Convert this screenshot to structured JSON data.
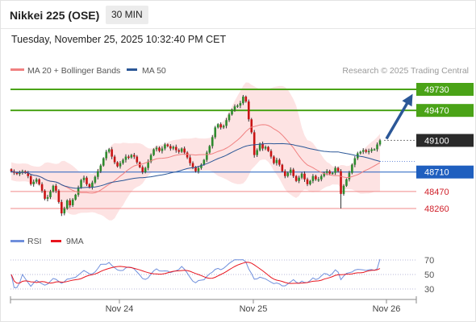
{
  "header": {
    "title": "Nikkei 225 (OSE)",
    "timeframe": "30 MIN",
    "datetime": "Tuesday, November 25, 2025 10:32:40 PM CET"
  },
  "legend": {
    "bb": {
      "label": "MA 20 + Bollinger Bands",
      "color": "#f08080"
    },
    "ma50": {
      "label": "MA 50",
      "color": "#2b5797"
    },
    "copyright": "Research © 2025 Trading Central"
  },
  "colors": {
    "up": "#2e8b2e",
    "down": "#c81414",
    "wick": "#333333",
    "resistance": "#4aa317",
    "support": "#1f5fbf",
    "minor_support": "#f08a8a",
    "current": "#2a2a2a",
    "arrow": "#2b5797",
    "band_fill": "#fde3e3",
    "rsi": "#6f8fdc",
    "rsi_ma": "#e8141e"
  },
  "chart_data": [
    {
      "type": "candlestick",
      "title": "",
      "xlabel": "",
      "ylabel": "",
      "x_ticks": [
        "Nov 24",
        "Nov 25",
        "Nov 26"
      ],
      "ylim": [
        48140,
        49780
      ],
      "grid": false,
      "legend": "top-left",
      "levels": [
        {
          "name": "resistance-2",
          "value": 49730,
          "label": "49730",
          "style": "resistance"
        },
        {
          "name": "resistance-1",
          "value": 49470,
          "label": "49470",
          "style": "resistance"
        },
        {
          "name": "current-price",
          "value": 49100,
          "label": "49100",
          "style": "current"
        },
        {
          "name": "pivot",
          "value": 48710,
          "label": "48710",
          "style": "support"
        },
        {
          "name": "support-1",
          "value": 48470,
          "label": "48470",
          "style": "minor_support"
        },
        {
          "name": "support-2",
          "value": 48260,
          "label": "48260",
          "style": "minor_support"
        }
      ],
      "forecast_arrow": {
        "from": 49100,
        "to": 49730
      },
      "closes": [
        48720,
        48700,
        48690,
        48700,
        48720,
        48700,
        48660,
        48560,
        48590,
        48620,
        48560,
        48480,
        48380,
        48400,
        48470,
        48540,
        48480,
        48340,
        48200,
        48260,
        48360,
        48300,
        48370,
        48430,
        48520,
        48610,
        48640,
        48560,
        48520,
        48580,
        48650,
        48720,
        48790,
        48880,
        48960,
        48990,
        48900,
        48830,
        48780,
        48820,
        48860,
        48900,
        48890,
        48920,
        48900,
        48830,
        48770,
        48710,
        48760,
        48840,
        48920,
        48990,
        49010,
        48970,
        49000,
        49050,
        49030,
        49000,
        49020,
        48980,
        48960,
        49000,
        48950,
        48890,
        48820,
        48770,
        48720,
        48760,
        48800,
        48860,
        48950,
        49030,
        49140,
        49260,
        49300,
        49260,
        49280,
        49350,
        49420,
        49480,
        49520,
        49530,
        49560,
        49640,
        49580,
        49360,
        49200,
        48920,
        48980,
        49060,
        49000,
        49020,
        48970,
        48900,
        48820,
        48860,
        48800,
        48720,
        48660,
        48700,
        48740,
        48660,
        48600,
        48640,
        48690,
        48620,
        48560,
        48600,
        48660,
        48620,
        48620,
        48660,
        48700,
        48720,
        48690,
        48700,
        48760,
        48720,
        48440,
        48540,
        48620,
        48700,
        48800,
        48880,
        48940,
        48960,
        48980,
        48960,
        48970,
        48990,
        48990,
        49050,
        49100
      ],
      "series": [
        {
          "name": "MA 20 + Bollinger Bands"
        },
        {
          "name": "MA 50"
        }
      ]
    },
    {
      "type": "line",
      "title": "",
      "legend": "top-left",
      "ylim": [
        20,
        80
      ],
      "y_ticks": [
        70,
        50,
        30
      ],
      "series": [
        {
          "name": "RSI"
        },
        {
          "name": "9MA"
        }
      ]
    }
  ]
}
